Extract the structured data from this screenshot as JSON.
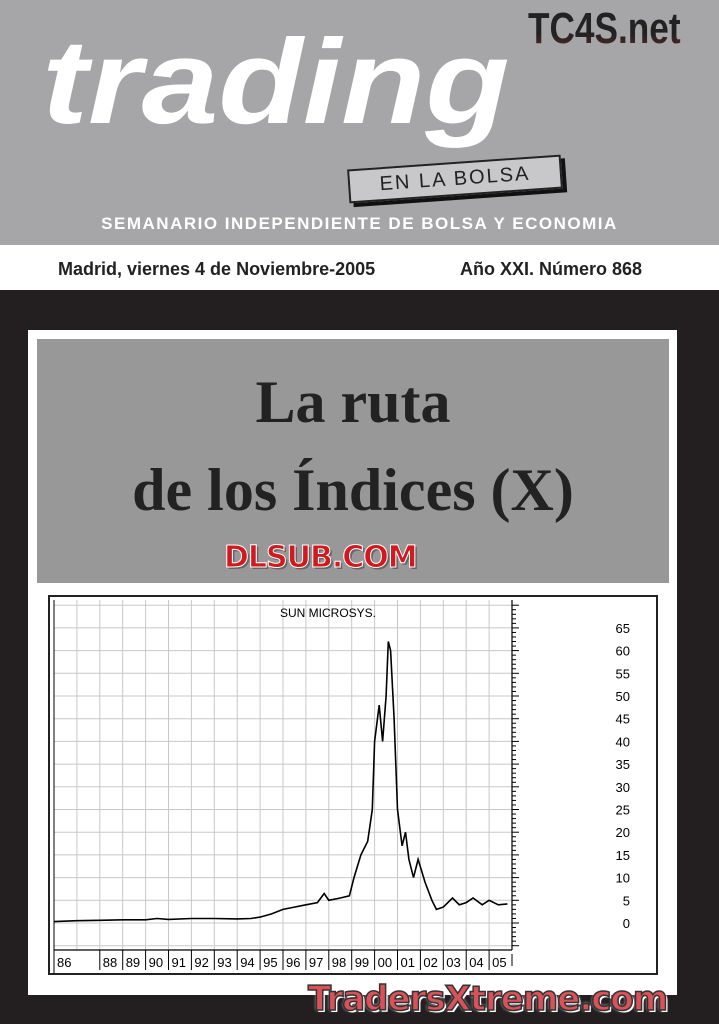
{
  "header": {
    "brand": "trading",
    "subbrand": "EN LA BOLSA",
    "watermark_top": "TC4S.net",
    "tagline": "SEMANARIO INDEPENDIENTE DE BOLSA Y ECONOMIA"
  },
  "dateline": {
    "date": "Madrid, viernes 4 de Noviembre-2005",
    "issue": "Año XXI. Número 868"
  },
  "cover": {
    "title_line1": "La ruta",
    "title_line2": "de los Índices (X)",
    "watermark_center": "DLSUB.COM",
    "watermark_bottom": "TradersXtreme.com"
  },
  "chart_data": {
    "type": "line",
    "title": "SUN MICROSYS.",
    "x_tick_labels": [
      "86",
      "88",
      "89",
      "90",
      "91",
      "92",
      "93",
      "94",
      "95",
      "96",
      "97",
      "98",
      "99",
      "00",
      "01",
      "02",
      "03",
      "04",
      "05"
    ],
    "y_tick_labels": [
      "0",
      "5",
      "10",
      "15",
      "20",
      "25",
      "30",
      "35",
      "40",
      "45",
      "50",
      "55",
      "60",
      "65"
    ],
    "xlim": [
      1986,
      2006
    ],
    "ylim": [
      -10,
      70
    ],
    "y_axis": "right",
    "grid": true,
    "x": [
      1986,
      1987,
      1988,
      1989,
      1990,
      1990.5,
      1991,
      1992,
      1993,
      1994,
      1994.6,
      1995,
      1995.5,
      1996,
      1996.5,
      1997,
      1997.5,
      1997.8,
      1998,
      1998.5,
      1998.9,
      1999.1,
      1999.4,
      1999.7,
      1999.9,
      2000.0,
      2000.2,
      2000.35,
      2000.5,
      2000.6,
      2000.7,
      2000.85,
      2001.0,
      2001.2,
      2001.35,
      2001.5,
      2001.7,
      2001.9,
      2002.2,
      2002.5,
      2002.7,
      2003.0,
      2003.4,
      2003.7,
      2004.0,
      2004.3,
      2004.7,
      2005.0,
      2005.4,
      2005.8
    ],
    "values": [
      0.3,
      0.5,
      0.6,
      0.7,
      0.7,
      1.0,
      0.8,
      1.0,
      1.0,
      0.9,
      1.0,
      1.3,
      2.0,
      3.0,
      3.5,
      4.0,
      4.5,
      6.5,
      5.0,
      5.5,
      6.0,
      10,
      15,
      18,
      25,
      40,
      48,
      40,
      50,
      62,
      60,
      45,
      25,
      17,
      20,
      14,
      10,
      14,
      9,
      5,
      3,
      3.5,
      5.5,
      4,
      4.5,
      5.5,
      4.0,
      5,
      4,
      4.2
    ],
    "line_color": "#000000"
  }
}
